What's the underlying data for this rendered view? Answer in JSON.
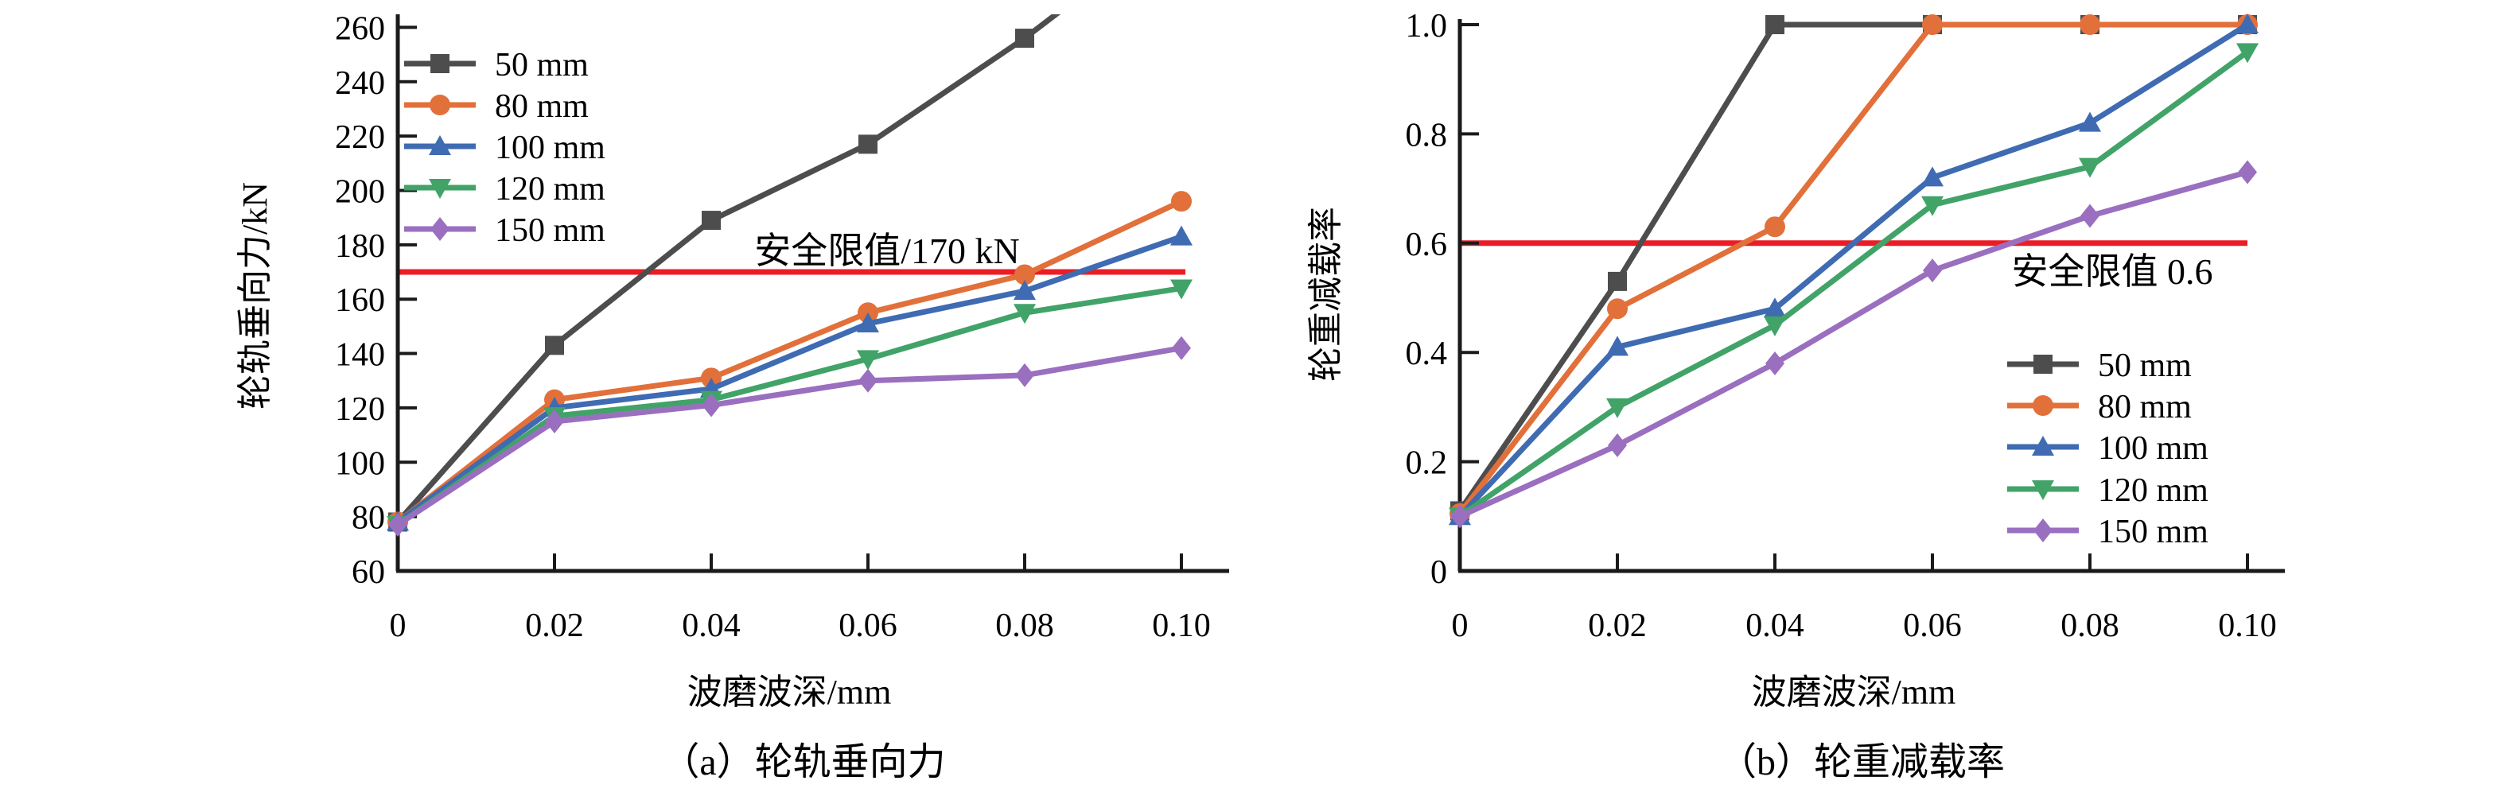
{
  "figure": {
    "background": "#FFFFFF",
    "axis_color": "#1A1A1A",
    "text_color": "#000000"
  },
  "chart_data": [
    {
      "type": "line",
      "caption": "（a）轮轨垂向力",
      "xlabel": "波磨波深/mm",
      "ylabel": "轮轨垂向力/kN",
      "x": [
        0,
        0.02,
        0.04,
        0.06,
        0.08,
        0.1
      ],
      "x_tick_labels": [
        "0",
        "0.02",
        "0.04",
        "0.06",
        "0.08",
        "0.10"
      ],
      "ylim": [
        60,
        260
      ],
      "y_ticks": [
        60,
        80,
        100,
        120,
        140,
        160,
        180,
        200,
        220,
        240,
        260
      ],
      "y_tick_labels": [
        "60",
        "80",
        "100",
        "120",
        "140",
        "160",
        "180",
        "200",
        "220",
        "240",
        "260"
      ],
      "grid": false,
      "legend_position": "top-left",
      "legend_labels": [
        "50 mm",
        "80 mm",
        "100 mm",
        "120 mm",
        "150 mm"
      ],
      "reference_line": {
        "value": 170,
        "label": "安全限值/170 kN",
        "color": "#EC1C24"
      },
      "series": [
        {
          "name": "50 mm",
          "color": "#4D4D4D",
          "marker": "square",
          "values": [
            78,
            143,
            189,
            217,
            256
          ],
          "offscale_continuation": {
            "x": 0.1,
            "value": 300
          }
        },
        {
          "name": "80 mm",
          "color": "#E2703A",
          "marker": "circle",
          "values": [
            78,
            123,
            131,
            155,
            169,
            196
          ]
        },
        {
          "name": "100 mm",
          "color": "#3F6BB2",
          "marker": "triangle-up",
          "values": [
            78,
            120,
            127,
            151,
            163,
            183
          ]
        },
        {
          "name": "120 mm",
          "color": "#41A368",
          "marker": "triangle-down",
          "values": [
            77,
            117,
            123,
            138,
            155,
            164
          ]
        },
        {
          "name": "150 mm",
          "color": "#9A6FBF",
          "marker": "diamond",
          "values": [
            77,
            115,
            121,
            130,
            132,
            142
          ]
        }
      ]
    },
    {
      "type": "line",
      "caption": "（b）轮重减载率",
      "xlabel": "波磨波深/mm",
      "ylabel": "轮重减载率",
      "x": [
        0,
        0.02,
        0.04,
        0.06,
        0.08,
        0.1
      ],
      "x_tick_labels": [
        "0",
        "0.02",
        "0.04",
        "0.06",
        "0.08",
        "0.10"
      ],
      "ylim": [
        0,
        1
      ],
      "y_ticks": [
        0,
        0.2,
        0.4,
        0.6,
        0.8,
        1.0
      ],
      "y_tick_labels": [
        "0",
        "0.2",
        "0.4",
        "0.6",
        "0.8",
        "1.0"
      ],
      "grid": false,
      "legend_position": "bottom-right",
      "legend_labels": [
        "50 mm",
        "80 mm",
        "100 mm",
        "120 mm",
        "150 mm"
      ],
      "reference_line": {
        "value": 0.6,
        "label": "安全限值 0.6",
        "color": "#EC1C24"
      },
      "series": [
        {
          "name": "50 mm",
          "color": "#4D4D4D",
          "marker": "square",
          "values": [
            0.11,
            0.53,
            1.0,
            1.0,
            1.0,
            1.0
          ]
        },
        {
          "name": "80 mm",
          "color": "#E2703A",
          "marker": "circle",
          "values": [
            0.105,
            0.48,
            0.63,
            1.0,
            1.0,
            1.0
          ]
        },
        {
          "name": "100 mm",
          "color": "#3F6BB2",
          "marker": "triangle-up",
          "values": [
            0.1,
            0.41,
            0.48,
            0.72,
            0.82,
            1.0
          ]
        },
        {
          "name": "120 mm",
          "color": "#41A368",
          "marker": "triangle-down",
          "values": [
            0.1,
            0.3,
            0.45,
            0.67,
            0.74,
            0.95
          ]
        },
        {
          "name": "150 mm",
          "color": "#9A6FBF",
          "marker": "diamond",
          "values": [
            0.1,
            0.23,
            0.38,
            0.55,
            0.65,
            0.73
          ]
        }
      ]
    }
  ]
}
